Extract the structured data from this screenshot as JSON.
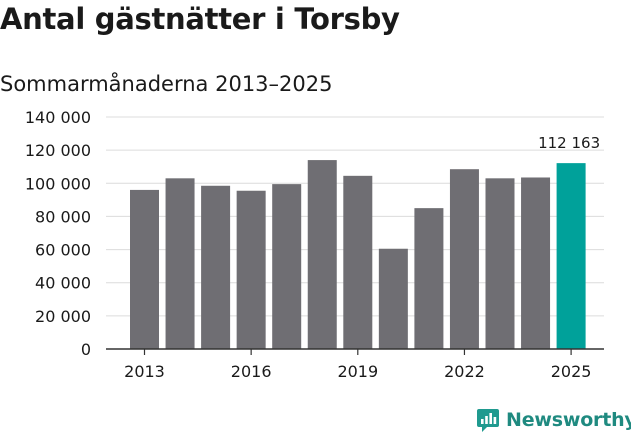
{
  "header": {
    "title": "Antal gästnätter i Torsby",
    "subtitle": "Sommarmånaderna 2013–2025"
  },
  "brand": {
    "name": "Newsworthy",
    "icon": "newsworthy-logo-icon",
    "color": "#1f9a8f"
  },
  "chart_data": {
    "type": "bar",
    "title": "Antal gästnätter i Torsby",
    "subtitle": "Sommarmånaderna 2013–2025",
    "xlabel": "",
    "ylabel": "",
    "categories": [
      "2013",
      "2014",
      "2015",
      "2016",
      "2017",
      "2018",
      "2019",
      "2020",
      "2021",
      "2022",
      "2023",
      "2024",
      "2025"
    ],
    "values": [
      96000,
      103000,
      98500,
      95500,
      99500,
      114000,
      104500,
      60500,
      85000,
      108500,
      103000,
      103500,
      112163
    ],
    "ylim": [
      0,
      140000
    ],
    "y_ticks": [
      0,
      20000,
      40000,
      60000,
      80000,
      100000,
      120000,
      140000
    ],
    "y_tick_labels": [
      "0",
      "20 000",
      "40 000",
      "60 000",
      "80 000",
      "100 000",
      "120 000",
      "140 000"
    ],
    "x_tick_labels": [
      "2013",
      "2016",
      "2019",
      "2022",
      "2025"
    ],
    "highlight_index": 12,
    "highlight_label": "112 163",
    "colors": {
      "bar": "#6f6e73",
      "highlight": "#00a19a",
      "grid": "#dcdcdc",
      "axis": "#333333"
    },
    "grid": true,
    "legend": "none"
  }
}
